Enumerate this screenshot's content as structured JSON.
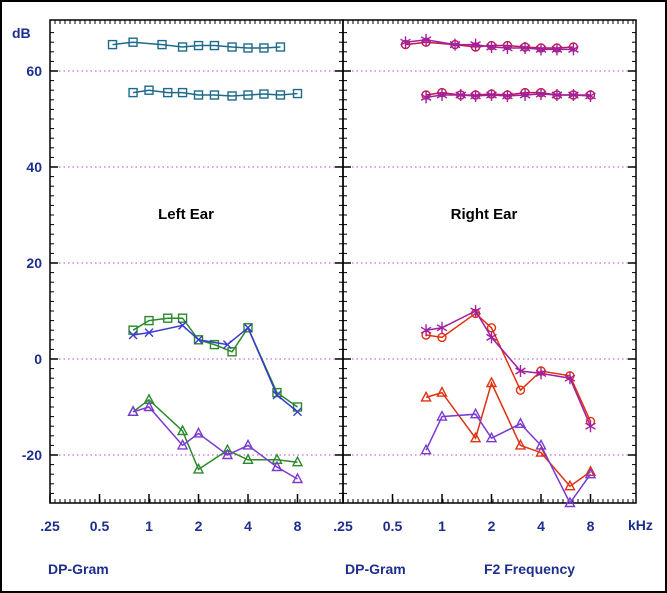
{
  "chart_data": {
    "type": "line",
    "y_unit": "dB",
    "x_unit": "kHz",
    "ylim": [
      -30,
      68
    ],
    "xlim": [
      0.25,
      10
    ],
    "x_scale": "log",
    "y_ticks": [
      60,
      40,
      20,
      0,
      -20
    ],
    "x_tick_labels": [
      ".25",
      "0.5",
      "1",
      "2",
      "4",
      "8"
    ],
    "x_tick_values": [
      0.25,
      0.5,
      1,
      2,
      4,
      8
    ],
    "footer_left": "DP-Gram",
    "footer_right_1": "DP-Gram",
    "footer_right_2": "F2 Frequency",
    "grid": true,
    "panels": [
      {
        "title": "Left Ear",
        "series": [
          {
            "marker": "square",
            "color": "#1e6a8a",
            "x": [
              0.6,
              0.8,
              1.2,
              1.6,
              2.0,
              2.5,
              3.2,
              4.0,
              5.0,
              6.3
            ],
            "y": [
              65.5,
              66,
              65.5,
              65,
              65.3,
              65.3,
              65,
              64.8,
              64.8,
              65
            ]
          },
          {
            "marker": "square",
            "color": "#1e6a8a",
            "x": [
              0.8,
              1.0,
              1.3,
              1.6,
              2.0,
              2.5,
              3.2,
              4.0,
              5.0,
              6.3,
              8.0
            ],
            "y": [
              55.5,
              56,
              55.5,
              55.5,
              55,
              55,
              54.8,
              55,
              55.2,
              55,
              55.3
            ]
          },
          {
            "marker": "square",
            "color": "#2a8a2a",
            "x": [
              0.8,
              1.0,
              1.3,
              1.6,
              2.0,
              2.5,
              3.2,
              4.0,
              6.0,
              8.0
            ],
            "y": [
              6,
              8,
              8.5,
              8.5,
              4,
              3,
              1.5,
              6.5,
              -7,
              -10
            ]
          },
          {
            "marker": "x",
            "color": "#3a3ad0",
            "x": [
              0.8,
              1.0,
              1.6,
              2.0,
              3.0,
              4.0,
              6.0,
              8.0
            ],
            "y": [
              5,
              5.5,
              7,
              4,
              3,
              6.5,
              -7.5,
              -11
            ]
          },
          {
            "marker": "triangle",
            "color": "#2a8a2a",
            "x": [
              0.8,
              1.0,
              1.6,
              2.0,
              3.0,
              4.0,
              6.0,
              8.0
            ],
            "y": [
              -11,
              -8.5,
              -15,
              -23,
              -19,
              -21,
              -21,
              -21.5
            ]
          },
          {
            "marker": "triangle",
            "color": "#7a3ad0",
            "x": [
              0.8,
              1.0,
              1.6,
              2.0,
              3.0,
              4.0,
              6.0,
              8.0
            ],
            "y": [
              -11,
              -10,
              -18,
              -15.5,
              -20,
              -18,
              -22.5,
              -25
            ]
          }
        ]
      },
      {
        "title": "Right Ear",
        "series": [
          {
            "marker": "circle",
            "color": "#c0184a",
            "x": [
              0.6,
              0.8,
              1.2,
              1.6,
              2.0,
              2.5,
              3.2,
              4.0,
              5.0,
              6.3
            ],
            "y": [
              65.5,
              66,
              65.5,
              65,
              65.3,
              65.3,
              65,
              64.8,
              64.8,
              65
            ]
          },
          {
            "marker": "star",
            "color": "#a020a0",
            "x": [
              0.6,
              0.8,
              1.2,
              1.6,
              2.0,
              2.5,
              3.2,
              4.0,
              5.0,
              6.3
            ],
            "y": [
              66,
              66.5,
              65.5,
              65.5,
              65,
              64.8,
              64.8,
              64.5,
              64.5,
              64.5
            ]
          },
          {
            "marker": "circle",
            "color": "#c0184a",
            "x": [
              0.8,
              1.0,
              1.3,
              1.6,
              2.0,
              2.5,
              3.2,
              4.0,
              5.0,
              6.3,
              8.0
            ],
            "y": [
              55,
              55.5,
              55,
              55,
              55.2,
              55,
              55.5,
              55.5,
              55,
              55,
              55
            ]
          },
          {
            "marker": "star",
            "color": "#a020a0",
            "x": [
              0.8,
              1.0,
              1.3,
              1.6,
              2.0,
              2.5,
              3.2,
              4.0,
              5.0,
              6.3,
              8.0
            ],
            "y": [
              54.5,
              55,
              55,
              54.8,
              55,
              54.8,
              55,
              55.2,
              55,
              55,
              54.8
            ]
          },
          {
            "marker": "circle",
            "color": "#e03010",
            "x": [
              0.8,
              1.0,
              1.6,
              2.0,
              3.0,
              4.0,
              6.0,
              8.0
            ],
            "y": [
              5,
              4.5,
              9.5,
              6.5,
              -6.5,
              -2.5,
              -3.5,
              -13
            ]
          },
          {
            "marker": "star",
            "color": "#a020a0",
            "x": [
              0.8,
              1.0,
              1.6,
              2.0,
              3.0,
              4.0,
              6.0,
              8.0
            ],
            "y": [
              6,
              6.5,
              10,
              4.5,
              -2.5,
              -3,
              -4,
              -14
            ]
          },
          {
            "marker": "triangle",
            "color": "#e03010",
            "x": [
              0.8,
              1.0,
              1.6,
              2.0,
              3.0,
              4.0,
              6.0,
              8.0
            ],
            "y": [
              -8,
              -7,
              -16.5,
              -5,
              -18,
              -19.5,
              -26.5,
              -23.5
            ]
          },
          {
            "marker": "triangle",
            "color": "#7a3ad0",
            "x": [
              0.8,
              1.0,
              1.6,
              2.0,
              3.0,
              4.0,
              6.0,
              8.0
            ],
            "y": [
              -19,
              -12,
              -11.5,
              -16.5,
              -13.5,
              -18,
              -30,
              -24
            ]
          }
        ]
      }
    ]
  }
}
